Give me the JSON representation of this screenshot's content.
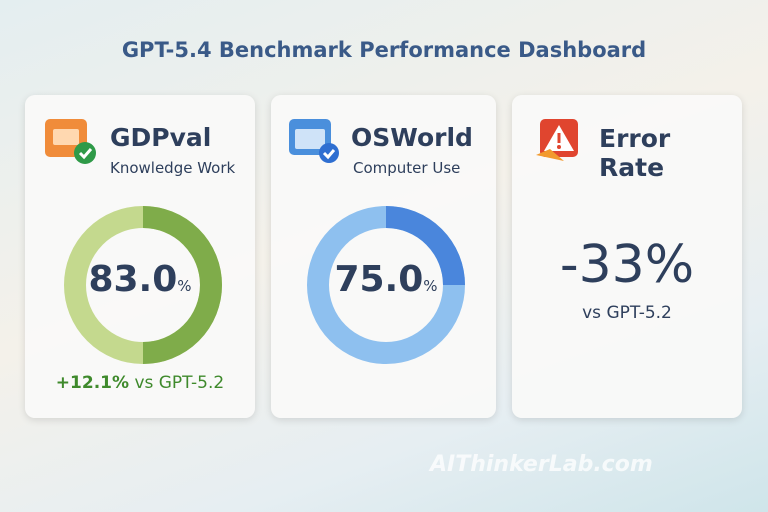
{
  "header": {
    "title": "GPT-5.4 Benchmark Performance Dashboard"
  },
  "cards": [
    {
      "title": "GDPval",
      "subtitle": "Knowledge Work",
      "value": "83.0",
      "unit": "%",
      "delta": "+12.1%",
      "comparison": "vs GPT-5.2"
    },
    {
      "title": "OSWorld",
      "subtitle": "Computer Use",
      "value": "75.0",
      "unit": "%"
    },
    {
      "title": "Error Rate",
      "value": "-33%",
      "comparison": "vs GPT-5.2"
    }
  ],
  "watermark": "AIThinkerLab.com"
}
